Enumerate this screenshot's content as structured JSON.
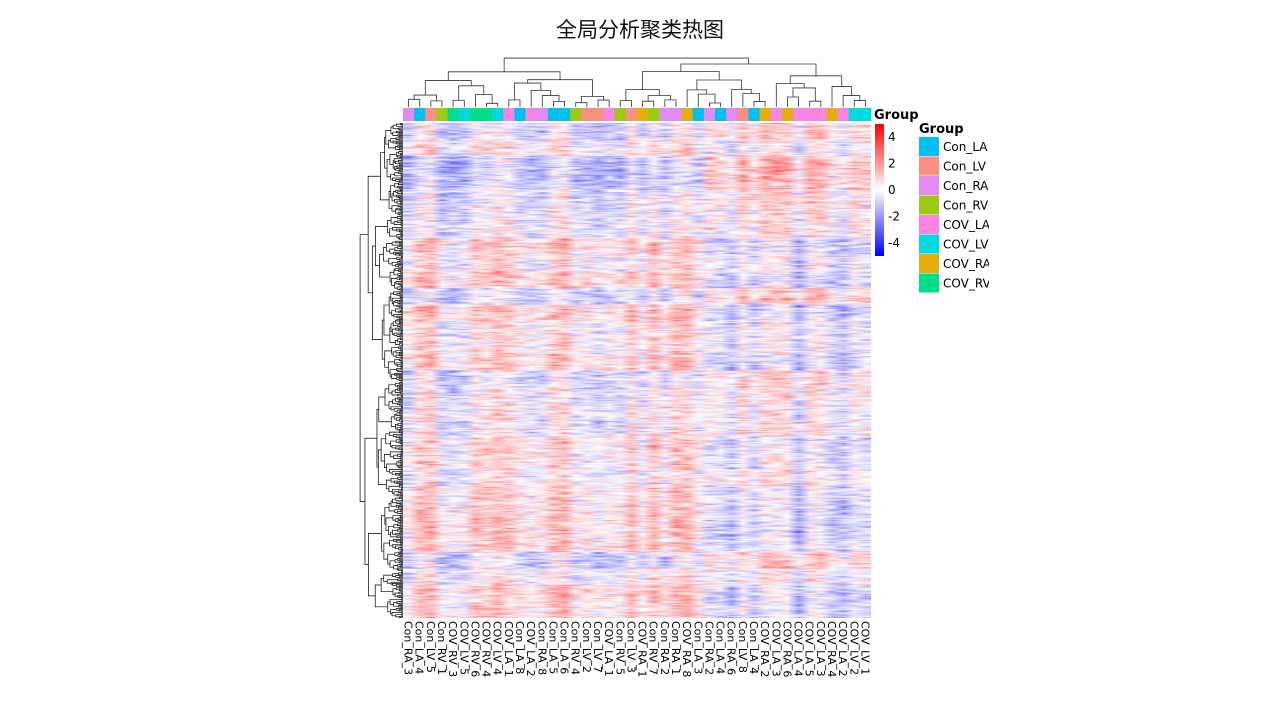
{
  "title": "全局分析聚类热图",
  "chart_data": {
    "type": "heatmap",
    "title": "全局分析聚类热图",
    "columns": [
      "Con_RA_3",
      "Con_LA_4",
      "Con_LV_5",
      "Con_RV_1",
      "COV_RV_3",
      "COV_LV_5",
      "COV_RV_6",
      "COV_RV_4",
      "COV_LV_4",
      "COV_LA_1",
      "Con_LA_8",
      "COV_LA_2",
      "Con_RA_8",
      "Con_LA_5",
      "Con_LA_6",
      "Con_RV_4",
      "Con_LV_2",
      "Con_LV_7",
      "COV_LA_1",
      "Con_RV_5",
      "Con_LV_3",
      "COV_RA_1",
      "Con_RV_7",
      "Con_RA_2",
      "Con_RA_1",
      "COV_RA_8",
      "Con_LA_3",
      "Con_RA_2",
      "Con_LA_4",
      "Con_RA_6",
      "Con_LV_8",
      "Con_LA_4",
      "COV_RA_2",
      "COV_LA_3",
      "COV_RA_6",
      "COV_LA_4",
      "COV_LA_5",
      "COV_LA_3",
      "COV_RA_4",
      "COV_LA_2",
      "COV_LV_2",
      "COV_LV_1"
    ],
    "column_groups": [
      "Con_RA",
      "Con_LA",
      "Con_LV",
      "Con_RV",
      "COV_RV",
      "COV_LV",
      "COV_RV",
      "COV_RV",
      "COV_LV",
      "COV_LA",
      "Con_LA",
      "COV_LA",
      "Con_RA",
      "Con_LA",
      "Con_LA",
      "Con_RV",
      "Con_LV",
      "Con_LV",
      "COV_LA",
      "Con_RV",
      "Con_LV",
      "COV_RA",
      "Con_RV",
      "Con_RA",
      "Con_RA",
      "COV_RA",
      "Con_LA",
      "Con_RA",
      "Con_LA",
      "Con_RA",
      "Con_LV",
      "Con_LA",
      "COV_RA",
      "COV_LA",
      "COV_RA",
      "COV_LA",
      "COV_LA",
      "COV_LA",
      "COV_RA",
      "COV_LA",
      "COV_LV",
      "COV_LV"
    ],
    "row_count": 450,
    "color_scale": {
      "min": -5,
      "max": 5,
      "low": "#0000ff",
      "mid": "#ffffff",
      "high": "#ff0000"
    },
    "colorbar": {
      "title": "Group",
      "ticks": [
        4,
        2,
        0,
        -2,
        -4
      ]
    },
    "legend": {
      "title": "Group",
      "placement": "right",
      "items": [
        {
          "label": "Con_LA",
          "display": "Con_LA",
          "color": "#00c0f0"
        },
        {
          "label": "Con_LV",
          "display": "Con_LV",
          "color": "#fa9080"
        },
        {
          "label": "Con_RA",
          "display": "Con_RA",
          "color": "#e08cf4"
        },
        {
          "label": "Con_RV",
          "display": "Con_RV",
          "color": "#9acc14"
        },
        {
          "label": "COV_LA",
          "display": "COV_LA",
          "color": "#fa84e4"
        },
        {
          "label": "COV_LV",
          "display": "COV_LV",
          "color": "#00d9de"
        },
        {
          "label": "COV_RA",
          "display": "COV_RA",
          "color": "#e5ae0a"
        },
        {
          "label": "COV_RV",
          "display": "COV_RV",
          "color": "#00de8a"
        }
      ]
    },
    "row_dendrogram": true,
    "column_dendrogram": true
  }
}
